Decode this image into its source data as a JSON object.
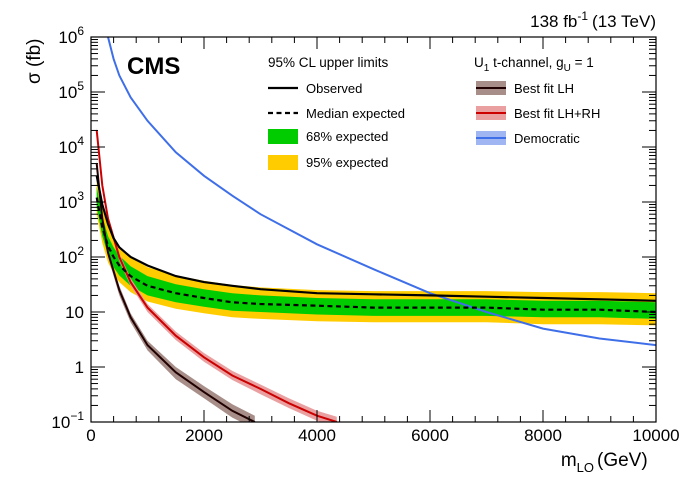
{
  "chart_data": {
    "type": "line",
    "experiment": "CMS",
    "lumi_text": "138 fb",
    "lumi_exp": "-1",
    "lumi_energy": "(13 TeV)",
    "xlabel": "m",
    "xlabel_sub": "LQ",
    "xlabel_unit": "(GeV)",
    "ylabel": "σ (fb)",
    "xlim": [
      0,
      10000
    ],
    "ylim_log10": [
      -1,
      6
    ],
    "x_ticks": [
      0,
      2000,
      4000,
      6000,
      8000,
      10000
    ],
    "x_tick_labels": [
      "0",
      "2000",
      "4000",
      "6000",
      "8000",
      "10000"
    ],
    "y_ticks_log10": [
      -1,
      0,
      1,
      2,
      3,
      4,
      5,
      6
    ],
    "y_tick_labels": [
      {
        "base": "10",
        "exp": "−1"
      },
      {
        "base": "1",
        "exp": ""
      },
      {
        "base": "10",
        "exp": ""
      },
      {
        "base": "10",
        "exp": "2"
      },
      {
        "base": "10",
        "exp": "3"
      },
      {
        "base": "10",
        "exp": "4"
      },
      {
        "base": "10",
        "exp": "5"
      },
      {
        "base": "10",
        "exp": "6"
      }
    ],
    "legend_left": {
      "header": "95% CL upper limits",
      "entries": [
        "Observed",
        "Median expected",
        "68% expected",
        "95% expected"
      ]
    },
    "legend_right": {
      "header_main": "U",
      "header_sub1": "1",
      "header_mid": " t-channel, g",
      "header_sub2": "U",
      "header_tail": " = 1",
      "entries": [
        "Best fit LH",
        "Best fit LH+RH",
        "Democratic"
      ]
    },
    "colors": {
      "observed": "#000000",
      "expected": "#000000",
      "band68": "#00cc00",
      "band95": "#ffcc00",
      "bestfit_lh_line": "#200000",
      "bestfit_lh_band": "#a88e89",
      "bestfit_lhrh_line": "#cc0000",
      "bestfit_lhrh_band": "#eaa0a0",
      "democratic": "#3f6fe8"
    },
    "series": [
      {
        "name": "Observed",
        "x": [
          100,
          200,
          300,
          400,
          500,
          700,
          1000,
          1500,
          2000,
          2500,
          3000,
          4000,
          5000,
          6000,
          7000,
          8000,
          9000,
          10000
        ],
        "y": [
          3000,
          900,
          400,
          220,
          150,
          100,
          70,
          45,
          35,
          30,
          26,
          22,
          21,
          20,
          19,
          18,
          17,
          16
        ]
      },
      {
        "name": "Median expected",
        "x": [
          100,
          200,
          300,
          400,
          500,
          700,
          1000,
          1500,
          2000,
          2500,
          3000,
          4000,
          5000,
          6000,
          7000,
          8000,
          9000,
          10000
        ],
        "y": [
          1200,
          350,
          160,
          100,
          70,
          45,
          30,
          22,
          18,
          15,
          14,
          13,
          12,
          12,
          12,
          11,
          11,
          10
        ]
      },
      {
        "name": "68% expected",
        "x": [
          100,
          200,
          300,
          400,
          500,
          700,
          1000,
          1500,
          2000,
          2500,
          3000,
          4000,
          5000,
          6000,
          7000,
          8000,
          9000,
          10000
        ],
        "y_low": [
          800,
          240,
          110,
          65,
          46,
          30,
          20,
          15,
          12.5,
          10.5,
          10,
          9,
          8.5,
          8.5,
          8.5,
          8,
          8,
          7.5
        ],
        "y_high": [
          1900,
          550,
          240,
          150,
          105,
          68,
          45,
          32,
          26,
          22,
          20,
          18,
          17,
          17,
          17,
          16,
          16,
          15
        ]
      },
      {
        "name": "95% expected",
        "x": [
          100,
          200,
          300,
          400,
          500,
          700,
          1000,
          1500,
          2000,
          2500,
          3000,
          4000,
          5000,
          6000,
          7000,
          8000,
          9000,
          10000
        ],
        "y_low": [
          600,
          180,
          80,
          50,
          35,
          23,
          15.5,
          11.5,
          9.5,
          8,
          7.5,
          6.8,
          6.5,
          6.5,
          6.5,
          6,
          6,
          5.7
        ],
        "y_high": [
          3000,
          850,
          360,
          220,
          155,
          100,
          65,
          46,
          37,
          31,
          28,
          25,
          24,
          24,
          24,
          23,
          23,
          22
        ]
      },
      {
        "name": "Best fit LH",
        "x": [
          100,
          200,
          300,
          500,
          700,
          1000,
          1500,
          2000,
          2500,
          2900
        ],
        "y": [
          5000,
          500,
          120,
          25,
          8,
          2.5,
          0.8,
          0.35,
          0.16,
          0.1
        ],
        "y_low": [
          4500,
          430,
          100,
          20,
          6.5,
          2.0,
          0.6,
          0.27,
          0.12,
          0.075
        ],
        "y_high": [
          5600,
          580,
          140,
          30,
          9.5,
          3.0,
          1.0,
          0.45,
          0.21,
          0.13
        ]
      },
      {
        "name": "Best fit LH+RH",
        "x": [
          100,
          200,
          300,
          500,
          700,
          1000,
          1500,
          2000,
          2500,
          3000,
          3500,
          4000,
          4350
        ],
        "y": [
          20000,
          2000,
          500,
          100,
          35,
          12,
          3.7,
          1.5,
          0.7,
          0.4,
          0.22,
          0.13,
          0.1
        ],
        "y_low": [
          18000,
          1750,
          430,
          85,
          30,
          10,
          3.1,
          1.25,
          0.58,
          0.32,
          0.18,
          0.105,
          0.08
        ],
        "y_high": [
          22500,
          2300,
          580,
          117,
          41,
          14,
          4.4,
          1.8,
          0.85,
          0.48,
          0.27,
          0.16,
          0.125
        ]
      },
      {
        "name": "Democratic",
        "x": [
          300,
          400,
          500,
          700,
          1000,
          1500,
          2000,
          2500,
          3000,
          4000,
          5000,
          6000,
          7000,
          8000,
          9000,
          10000
        ],
        "y": [
          1000000,
          400000,
          200000,
          80000,
          30000,
          8000,
          3000,
          1300,
          600,
          170,
          60,
          22,
          10,
          5,
          3.3,
          2.5
        ]
      }
    ]
  }
}
